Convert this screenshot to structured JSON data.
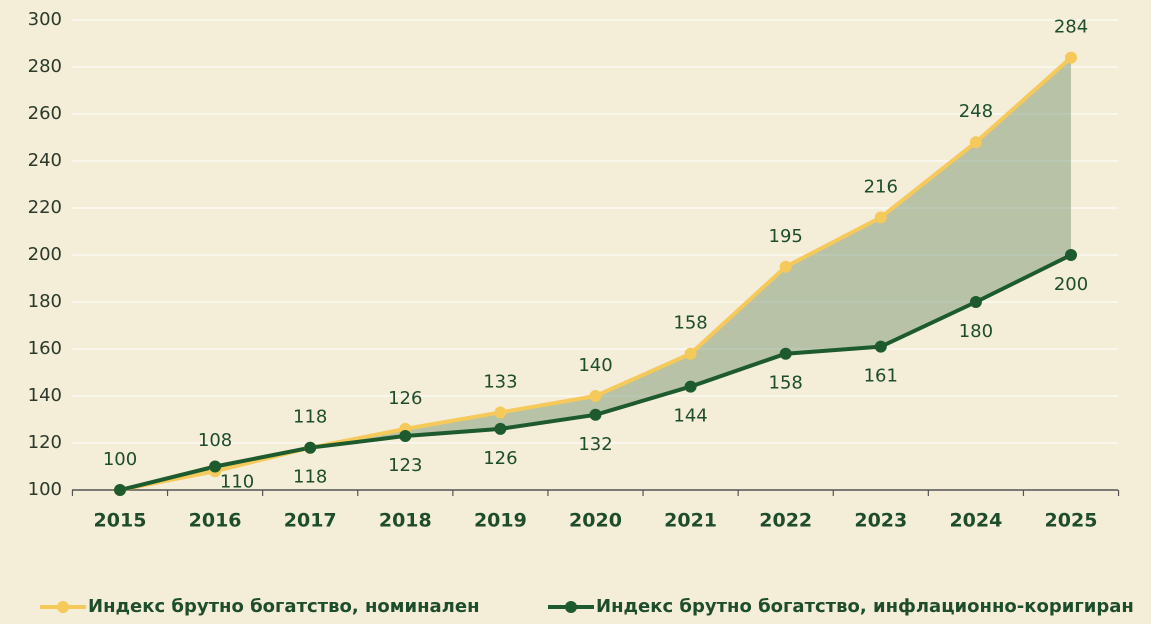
{
  "chart_data": {
    "type": "line",
    "categories": [
      "2015",
      "2016",
      "2017",
      "2018",
      "2019",
      "2020",
      "2021",
      "2022",
      "2023",
      "2024",
      "2025"
    ],
    "series": [
      {
        "name": "Индекс брутно богатство, номинален",
        "color": "#f5c95a",
        "values": [
          100,
          108,
          118,
          126,
          133,
          140,
          158,
          195,
          216,
          248,
          284
        ]
      },
      {
        "name": "Индекс брутно богатство, инфлационно-коригиран",
        "color": "#1d5a2d",
        "values": [
          100,
          110,
          118,
          123,
          126,
          132,
          144,
          158,
          161,
          180,
          200
        ],
        "value_labels": [
          null,
          110,
          118,
          123,
          126,
          132,
          144,
          158,
          161,
          180,
          200
        ]
      }
    ],
    "ylim": [
      100,
      300
    ],
    "yticks": [
      100,
      120,
      140,
      160,
      180,
      200,
      220,
      240,
      260,
      280,
      300
    ],
    "grid": true,
    "fill_between": true,
    "legend": "bottom"
  }
}
